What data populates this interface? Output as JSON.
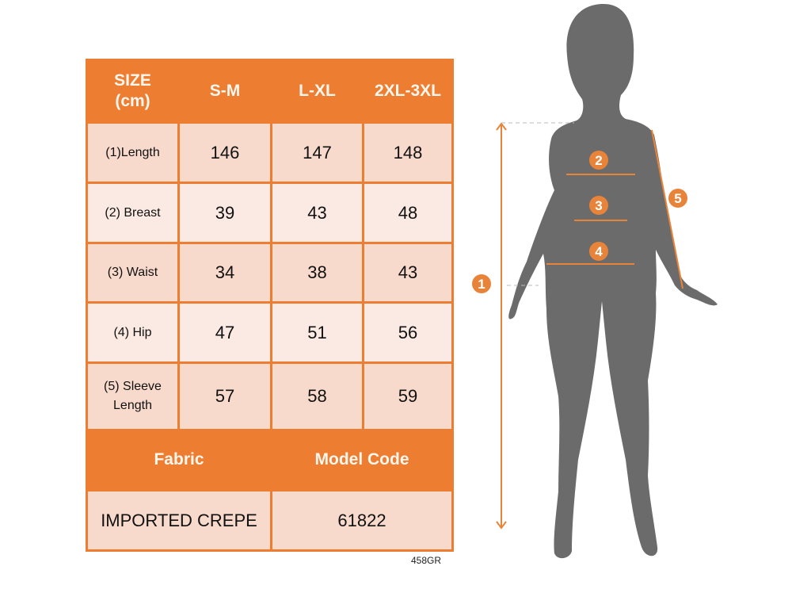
{
  "table": {
    "header": [
      "SIZE\n(cm)",
      "S-M",
      "L-XL",
      "2XL-3XL"
    ],
    "header_line1": "SIZE",
    "header_line2": "(cm)",
    "rows": [
      {
        "label": "(1)Length",
        "values": [
          "146",
          "147",
          "148"
        ]
      },
      {
        "label": "(2) Breast",
        "values": [
          "39",
          "43",
          "48"
        ]
      },
      {
        "label": "(3) Waist",
        "values": [
          "34",
          "38",
          "43"
        ]
      },
      {
        "label": "(4) Hip",
        "values": [
          "47",
          "51",
          "56"
        ]
      },
      {
        "label_line1": "(5) Sleeve",
        "label_line2": "Length",
        "values": [
          "57",
          "58",
          "59"
        ]
      }
    ],
    "footer_headers": [
      "Fabric",
      "Model Code"
    ],
    "footer_values": [
      "IMPORTED CREPE",
      "61822"
    ]
  },
  "code": "458GR",
  "figure": {
    "markers": [
      "1",
      "2",
      "3",
      "4",
      "5"
    ]
  },
  "colors": {
    "accent": "#ED7D31",
    "row_dark": "#F8DACD",
    "row_light": "#FBEAE3",
    "silhouette": "#6B6B6B"
  }
}
